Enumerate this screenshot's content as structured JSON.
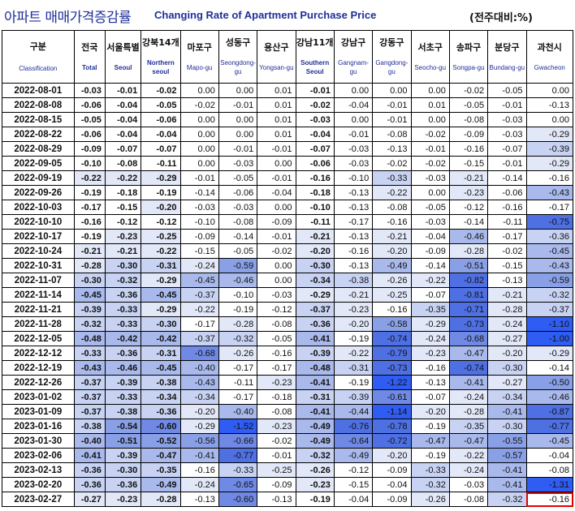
{
  "title": {
    "korean": "아파트 매매가격증감률",
    "english": "Changing Rate of Apartment Purchase Price",
    "unit": "(전주대비:%)"
  },
  "header_color": "#1f2f9a",
  "highlight_color": "#e00000",
  "columns": [
    {
      "ko": "구분",
      "en": "Classification"
    },
    {
      "ko": "전국",
      "en": "Total"
    },
    {
      "ko": "서울특별",
      "en": "Seoul"
    },
    {
      "ko": "강북14개",
      "en": "Northern seoul"
    },
    {
      "ko": "마포구",
      "en": "Mapo-gu"
    },
    {
      "ko": "성동구",
      "en": "Seongdong-gu"
    },
    {
      "ko": "용산구",
      "en": "Yongsan-gu"
    },
    {
      "ko": "강남11개",
      "en": "Southern Seoul"
    },
    {
      "ko": "강남구",
      "en": "Gangnam-gu"
    },
    {
      "ko": "강동구",
      "en": "Gangdong-gu"
    },
    {
      "ko": "서초구",
      "en": "Seocho-gu"
    },
    {
      "ko": "송파구",
      "en": "Songpa-gu"
    },
    {
      "ko": "분당구",
      "en": "Bundang-gu"
    },
    {
      "ko": "과천시",
      "en": "Gwacheon"
    }
  ],
  "rows": [
    {
      "date": "2022-08-01",
      "values": [
        "-0.03",
        "-0.01",
        "-0.02",
        "0.00",
        "0.00",
        "0.01",
        "-0.01",
        "0.00",
        "0.00",
        "0.00",
        "-0.02",
        "-0.05",
        "0.00"
      ]
    },
    {
      "date": "2022-08-08",
      "values": [
        "-0.06",
        "-0.04",
        "-0.05",
        "-0.02",
        "-0.01",
        "0.01",
        "-0.02",
        "-0.04",
        "-0.01",
        "0.01",
        "-0.05",
        "-0.01",
        "-0.13"
      ]
    },
    {
      "date": "2022-08-15",
      "values": [
        "-0.05",
        "-0.04",
        "-0.06",
        "0.00",
        "0.00",
        "0.01",
        "-0.03",
        "0.00",
        "-0.01",
        "0.00",
        "-0.08",
        "-0.03",
        "0.00"
      ]
    },
    {
      "date": "2022-08-22",
      "values": [
        "-0.06",
        "-0.04",
        "-0.04",
        "0.00",
        "0.00",
        "0.01",
        "-0.04",
        "-0.01",
        "-0.08",
        "-0.02",
        "-0.09",
        "-0.03",
        "-0.29"
      ]
    },
    {
      "date": "2022-08-29",
      "values": [
        "-0.09",
        "-0.07",
        "-0.07",
        "0.00",
        "-0.01",
        "-0.01",
        "-0.07",
        "-0.03",
        "-0.13",
        "-0.01",
        "-0.16",
        "-0.07",
        "-0.39"
      ]
    },
    {
      "date": "2022-09-05",
      "values": [
        "-0.10",
        "-0.08",
        "-0.11",
        "0.00",
        "-0.03",
        "0.00",
        "-0.06",
        "-0.03",
        "-0.02",
        "-0.02",
        "-0.15",
        "-0.01",
        "-0.29"
      ]
    },
    {
      "date": "2022-09-19",
      "values": [
        "-0.22",
        "-0.22",
        "-0.29",
        "-0.01",
        "-0.05",
        "-0.01",
        "-0.16",
        "-0.10",
        "-0.33",
        "-0.03",
        "-0.21",
        "-0.14",
        "-0.16"
      ]
    },
    {
      "date": "2022-09-26",
      "values": [
        "-0.19",
        "-0.18",
        "-0.19",
        "-0.14",
        "-0.06",
        "-0.04",
        "-0.18",
        "-0.13",
        "-0.22",
        "0.00",
        "-0.23",
        "-0.06",
        "-0.43"
      ]
    },
    {
      "date": "2022-10-03",
      "values": [
        "-0.17",
        "-0.15",
        "-0.20",
        "-0.03",
        "-0.03",
        "0.00",
        "-0.10",
        "-0.13",
        "-0.08",
        "-0.05",
        "-0.12",
        "-0.16",
        "-0.17"
      ]
    },
    {
      "date": "2022-10-10",
      "values": [
        "-0.16",
        "-0.12",
        "-0.12",
        "-0.10",
        "-0.08",
        "-0.09",
        "-0.11",
        "-0.17",
        "-0.16",
        "-0.03",
        "-0.14",
        "-0.11",
        "-0.75"
      ]
    },
    {
      "date": "2022-10-17",
      "values": [
        "-0.19",
        "-0.23",
        "-0.25",
        "-0.09",
        "-0.14",
        "-0.01",
        "-0.21",
        "-0.13",
        "-0.21",
        "-0.04",
        "-0.46",
        "-0.17",
        "-0.36"
      ]
    },
    {
      "date": "2022-10-24",
      "values": [
        "-0.21",
        "-0.21",
        "-0.22",
        "-0.15",
        "-0.05",
        "-0.02",
        "-0.20",
        "-0.16",
        "-0.20",
        "-0.09",
        "-0.28",
        "-0.02",
        "-0.45"
      ]
    },
    {
      "date": "2022-10-31",
      "values": [
        "-0.28",
        "-0.30",
        "-0.31",
        "-0.24",
        "-0.59",
        "0.00",
        "-0.30",
        "-0.13",
        "-0.49",
        "-0.14",
        "-0.51",
        "-0.15",
        "-0.43"
      ]
    },
    {
      "date": "2022-11-07",
      "values": [
        "-0.30",
        "-0.32",
        "-0.29",
        "-0.45",
        "-0.46",
        "0.00",
        "-0.34",
        "-0.38",
        "-0.26",
        "-0.22",
        "-0.82",
        "-0.13",
        "-0.59"
      ]
    },
    {
      "date": "2022-11-14",
      "values": [
        "-0.45",
        "-0.36",
        "-0.45",
        "-0.37",
        "-0.10",
        "-0.03",
        "-0.29",
        "-0.21",
        "-0.25",
        "-0.07",
        "-0.81",
        "-0.21",
        "-0.32"
      ]
    },
    {
      "date": "2022-11-21",
      "values": [
        "-0.39",
        "-0.33",
        "-0.29",
        "-0.22",
        "-0.19",
        "-0.12",
        "-0.37",
        "-0.23",
        "-0.16",
        "-0.35",
        "-0.71",
        "-0.28",
        "-0.37"
      ]
    },
    {
      "date": "2022-11-28",
      "values": [
        "-0.32",
        "-0.33",
        "-0.30",
        "-0.17",
        "-0.28",
        "-0.08",
        "-0.36",
        "-0.20",
        "-0.58",
        "-0.29",
        "-0.73",
        "-0.24",
        "-1.10"
      ]
    },
    {
      "date": "2022-12-05",
      "values": [
        "-0.48",
        "-0.42",
        "-0.42",
        "-0.37",
        "-0.32",
        "-0.05",
        "-0.41",
        "-0.19",
        "-0.74",
        "-0.24",
        "-0.68",
        "-0.27",
        "-1.00"
      ]
    },
    {
      "date": "2022-12-12",
      "values": [
        "-0.33",
        "-0.36",
        "-0.31",
        "-0.68",
        "-0.26",
        "-0.16",
        "-0.39",
        "-0.22",
        "-0.79",
        "-0.23",
        "-0.47",
        "-0.20",
        "-0.29"
      ]
    },
    {
      "date": "2022-12-19",
      "values": [
        "-0.43",
        "-0.46",
        "-0.45",
        "-0.40",
        "-0.17",
        "-0.17",
        "-0.48",
        "-0.31",
        "-0.73",
        "-0.16",
        "-0.74",
        "-0.30",
        "-0.14"
      ]
    },
    {
      "date": "2022-12-26",
      "values": [
        "-0.37",
        "-0.39",
        "-0.38",
        "-0.43",
        "-0.11",
        "-0.23",
        "-0.41",
        "-0.19",
        "-1.22",
        "-0.13",
        "-0.41",
        "-0.27",
        "-0.50"
      ]
    },
    {
      "date": "2023-01-02",
      "values": [
        "-0.37",
        "-0.33",
        "-0.34",
        "-0.34",
        "-0.17",
        "-0.18",
        "-0.31",
        "-0.39",
        "-0.61",
        "-0.07",
        "-0.24",
        "-0.34",
        "-0.46"
      ]
    },
    {
      "date": "2023-01-09",
      "values": [
        "-0.37",
        "-0.38",
        "-0.36",
        "-0.20",
        "-0.40",
        "-0.08",
        "-0.41",
        "-0.44",
        "-1.14",
        "-0.20",
        "-0.28",
        "-0.41",
        "-0.87"
      ]
    },
    {
      "date": "2023-01-16",
      "values": [
        "-0.38",
        "-0.54",
        "-0.60",
        "-0.29",
        "-1.52",
        "-0.23",
        "-0.49",
        "-0.76",
        "-0.78",
        "-0.19",
        "-0.35",
        "-0.30",
        "-0.77"
      ]
    },
    {
      "date": "2023-01-30",
      "values": [
        "-0.40",
        "-0.51",
        "-0.52",
        "-0.56",
        "-0.66",
        "-0.02",
        "-0.49",
        "-0.64",
        "-0.72",
        "-0.47",
        "-0.47",
        "-0.55",
        "-0.45"
      ]
    },
    {
      "date": "2023-02-06",
      "values": [
        "-0.41",
        "-0.39",
        "-0.47",
        "-0.41",
        "-0.77",
        "-0.01",
        "-0.32",
        "-0.49",
        "-0.20",
        "-0.19",
        "-0.22",
        "-0.57",
        "-0.04"
      ]
    },
    {
      "date": "2023-02-13",
      "values": [
        "-0.36",
        "-0.30",
        "-0.35",
        "-0.16",
        "-0.33",
        "-0.25",
        "-0.26",
        "-0.12",
        "-0.09",
        "-0.33",
        "-0.24",
        "-0.41",
        "-0.08"
      ]
    },
    {
      "date": "2023-02-20",
      "values": [
        "-0.36",
        "-0.36",
        "-0.49",
        "-0.24",
        "-0.65",
        "-0.09",
        "-0.23",
        "-0.15",
        "-0.04",
        "-0.32",
        "-0.03",
        "-0.41",
        "-1.31"
      ]
    },
    {
      "date": "2023-02-27",
      "values": [
        "-0.27",
        "-0.23",
        "-0.28",
        "-0.13",
        "-0.60",
        "-0.13",
        "-0.19",
        "-0.04",
        "-0.09",
        "-0.26",
        "-0.08",
        "-0.32",
        "-0.16"
      ]
    }
  ],
  "highlighted_cell": {
    "date": "2023-02-27",
    "column": "과천시"
  }
}
